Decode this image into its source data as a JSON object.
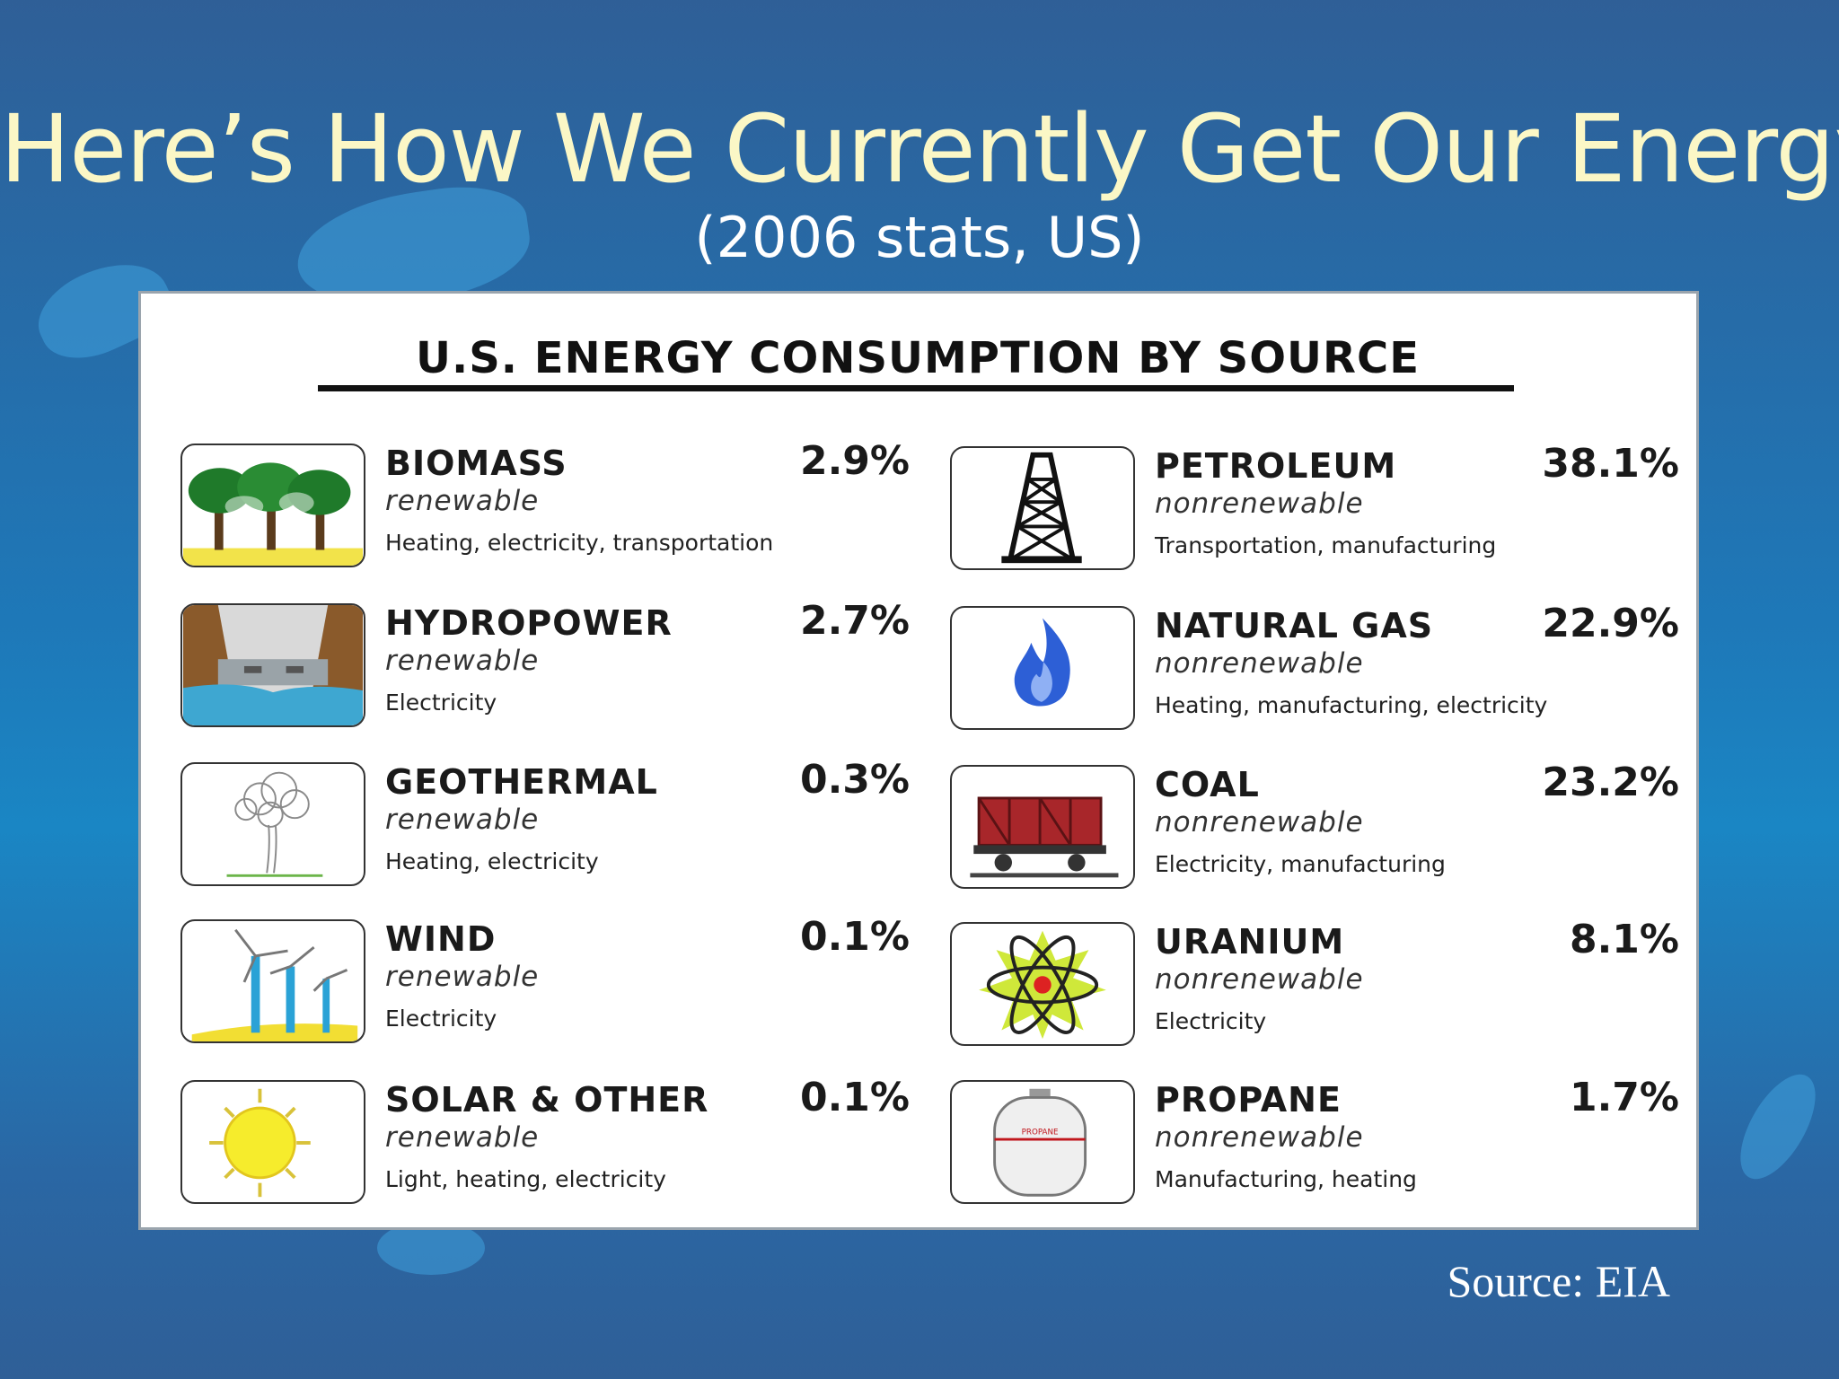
{
  "slide": {
    "title": "Here’s How We Currently Get Our Energy:",
    "subtitle": "(2006 stats, US)",
    "source": "Source: EIA"
  },
  "figure": {
    "title": "U.S. ENERGY CONSUMPTION BY SOURCE",
    "left_column": [
      {
        "name": "BIOMASS",
        "kind": "renewable",
        "uses": "Heating, electricity, transportation",
        "percent": "2.9%",
        "icon": "trees-icon"
      },
      {
        "name": "HYDROPOWER",
        "kind": "renewable",
        "uses": "Electricity",
        "percent": "2.7%",
        "icon": "dam-icon"
      },
      {
        "name": "GEOTHERMAL",
        "kind": "renewable",
        "uses": "Heating, electricity",
        "percent": "0.3%",
        "icon": "steam-icon"
      },
      {
        "name": "WIND",
        "kind": "renewable",
        "uses": "Electricity",
        "percent": "0.1%",
        "icon": "wind-turbine-icon"
      },
      {
        "name": "SOLAR & OTHER",
        "kind": "renewable",
        "uses": "Light, heating, electricity",
        "percent": "0.1%",
        "icon": "sun-icon"
      }
    ],
    "right_column": [
      {
        "name": "PETROLEUM",
        "kind": "nonrenewable",
        "uses": "Transportation, manufacturing",
        "percent": "38.1%",
        "icon": "oil-derrick-icon"
      },
      {
        "name": "NATURAL GAS",
        "kind": "nonrenewable",
        "uses": "Heating, manufacturing, electricity",
        "percent": "22.9%",
        "icon": "flame-icon"
      },
      {
        "name": "COAL",
        "kind": "nonrenewable",
        "uses": "Electricity, manufacturing",
        "percent": "23.2%",
        "icon": "coal-car-icon"
      },
      {
        "name": "URANIUM",
        "kind": "nonrenewable",
        "uses": "Electricity",
        "percent": "8.1%",
        "icon": "atom-icon"
      },
      {
        "name": "PROPANE",
        "kind": "nonrenewable",
        "uses": "Manufacturing, heating",
        "percent": "1.7%",
        "icon": "propane-tank-icon",
        "tank_label": "PROPANE"
      }
    ]
  }
}
